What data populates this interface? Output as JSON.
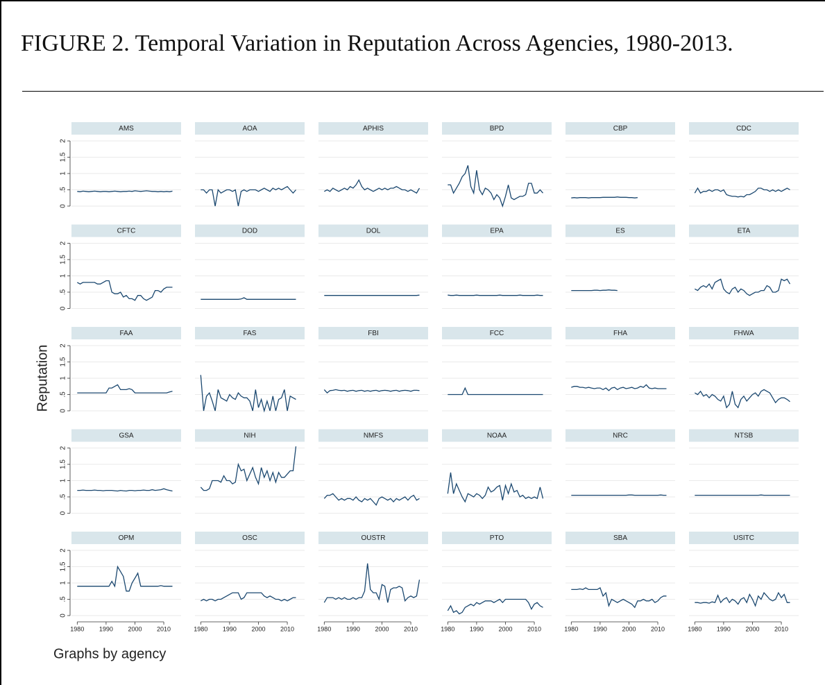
{
  "title": "FIGURE 2. Temporal Variation in Reputation Across Agencies, 1980-2013.",
  "ylabel": "Reputation",
  "note": "Graphs by agency",
  "axes": {
    "x": [
      1980,
      1981,
      1982,
      1983,
      1984,
      1985,
      1986,
      1987,
      1988,
      1989,
      1990,
      1991,
      1992,
      1993,
      1994,
      1995,
      1996,
      1997,
      1998,
      1999,
      2000,
      2001,
      2002,
      2003,
      2004,
      2005,
      2006,
      2007,
      2008,
      2009,
      2010,
      2011,
      2012,
      2013
    ],
    "xlim": [
      1978,
      2016
    ],
    "xticks": [
      1980,
      1990,
      2000,
      2010
    ],
    "ylim": [
      -0.15,
      2.15
    ],
    "yticks": [
      0,
      {
        "value": 0.5,
        "label": ".5"
      },
      1,
      1.5,
      2
    ],
    "color": "#1a476f",
    "grid": true
  },
  "chart_data": [
    {
      "type": "line",
      "title": "AMS",
      "values": [
        0.45,
        0.44,
        0.46,
        0.45,
        0.44,
        0.45,
        0.46,
        0.45,
        0.44,
        0.45,
        0.45,
        0.44,
        0.45,
        0.46,
        0.45,
        0.44,
        0.45,
        0.45,
        0.46,
        0.45,
        0.47,
        0.46,
        0.45,
        0.46,
        0.47,
        0.46,
        0.45,
        0.45,
        0.44,
        0.45,
        0.44,
        0.45,
        0.44,
        0.46
      ]
    },
    {
      "type": "line",
      "title": "AOA",
      "values": [
        0.5,
        0.5,
        0.4,
        0.5,
        0.5,
        0.0,
        0.5,
        0.4,
        0.45,
        0.5,
        0.5,
        0.45,
        0.5,
        0.0,
        0.45,
        0.5,
        0.45,
        0.5,
        0.5,
        0.5,
        0.45,
        0.5,
        0.55,
        0.5,
        0.45,
        0.55,
        0.5,
        0.55,
        0.5,
        0.55,
        0.6,
        0.5,
        0.4,
        0.5
      ]
    },
    {
      "type": "line",
      "title": "APHIS",
      "values": [
        0.45,
        0.5,
        0.45,
        0.55,
        0.5,
        0.45,
        0.5,
        0.55,
        0.5,
        0.6,
        0.55,
        0.65,
        0.8,
        0.6,
        0.5,
        0.55,
        0.5,
        0.45,
        0.5,
        0.55,
        0.5,
        0.55,
        0.5,
        0.55,
        0.55,
        0.6,
        0.55,
        0.5,
        0.5,
        0.45,
        0.5,
        0.45,
        0.4,
        0.55
      ]
    },
    {
      "type": "line",
      "title": "BPD",
      "values": [
        0.65,
        0.65,
        0.4,
        0.55,
        0.7,
        0.9,
        1.0,
        1.25,
        0.6,
        0.4,
        1.1,
        0.5,
        0.35,
        0.55,
        0.5,
        0.4,
        0.2,
        0.35,
        0.25,
        0.0,
        0.3,
        0.65,
        0.25,
        0.2,
        0.25,
        0.3,
        0.3,
        0.35,
        0.7,
        0.7,
        0.4,
        0.4,
        0.5,
        0.4
      ]
    },
    {
      "type": "line",
      "title": "CBP",
      "values": [
        0.25,
        0.26,
        0.25,
        0.26,
        0.26,
        0.26,
        0.25,
        0.26,
        0.26,
        0.26,
        0.26,
        0.27,
        0.27,
        0.27,
        0.27,
        0.27,
        0.28,
        0.27,
        0.27,
        0.27,
        0.26,
        0.26,
        0.25,
        0.26,
        null,
        null,
        null,
        null,
        null,
        null,
        null,
        null,
        null,
        null
      ]
    },
    {
      "type": "line",
      "title": "CDC",
      "values": [
        0.4,
        0.55,
        0.4,
        0.45,
        0.45,
        0.5,
        0.45,
        0.5,
        0.5,
        0.45,
        0.5,
        0.35,
        0.32,
        0.3,
        0.3,
        0.28,
        0.3,
        0.28,
        0.35,
        0.35,
        0.4,
        0.45,
        0.55,
        0.55,
        0.5,
        0.5,
        0.45,
        0.5,
        0.45,
        0.5,
        0.45,
        0.5,
        0.55,
        0.5
      ]
    },
    {
      "type": "line",
      "title": "CFTC",
      "values": [
        0.8,
        0.75,
        0.8,
        0.8,
        0.8,
        0.8,
        0.8,
        0.75,
        0.75,
        0.8,
        0.85,
        0.85,
        0.5,
        0.45,
        0.45,
        0.5,
        0.35,
        0.4,
        0.3,
        0.3,
        0.25,
        0.4,
        0.4,
        0.3,
        0.25,
        0.3,
        0.35,
        0.55,
        0.55,
        0.5,
        0.6,
        0.65,
        0.65,
        0.65
      ]
    },
    {
      "type": "line",
      "title": "DOD",
      "values": [
        0.28,
        0.28,
        0.28,
        0.28,
        0.28,
        0.28,
        0.28,
        0.28,
        0.28,
        0.28,
        0.28,
        0.28,
        0.28,
        0.28,
        0.29,
        0.33,
        0.28,
        0.28,
        0.28,
        0.28,
        0.28,
        0.28,
        0.28,
        0.28,
        0.28,
        0.28,
        0.28,
        0.28,
        0.28,
        0.28,
        0.28,
        0.28,
        0.28,
        0.28
      ]
    },
    {
      "type": "line",
      "title": "DOL",
      "values": [
        0.4,
        0.4,
        0.4,
        0.4,
        0.4,
        0.4,
        0.4,
        0.4,
        0.4,
        0.4,
        0.4,
        0.4,
        0.4,
        0.4,
        0.4,
        0.4,
        0.4,
        0.4,
        0.4,
        0.4,
        0.4,
        0.4,
        0.4,
        0.4,
        0.4,
        0.4,
        0.4,
        0.4,
        0.4,
        0.4,
        0.4,
        0.4,
        0.4,
        0.41
      ]
    },
    {
      "type": "line",
      "title": "EPA",
      "values": [
        0.41,
        0.4,
        0.4,
        0.41,
        0.4,
        0.4,
        0.4,
        0.4,
        0.4,
        0.4,
        0.41,
        0.4,
        0.4,
        0.4,
        0.4,
        0.4,
        0.4,
        0.4,
        0.41,
        0.4,
        0.4,
        0.4,
        0.4,
        0.4,
        0.4,
        0.41,
        0.4,
        0.4,
        0.4,
        0.4,
        0.4,
        0.41,
        0.4,
        0.4
      ]
    },
    {
      "type": "line",
      "title": "ES",
      "values": [
        0.55,
        0.55,
        0.55,
        0.55,
        0.55,
        0.55,
        0.55,
        0.55,
        0.56,
        0.56,
        0.55,
        0.56,
        0.56,
        0.57,
        0.56,
        0.56,
        0.55,
        null,
        null,
        null,
        null,
        null,
        null,
        null,
        null,
        null,
        null,
        null,
        null,
        null,
        null,
        null,
        null,
        null
      ]
    },
    {
      "type": "line",
      "title": "ETA",
      "values": [
        0.6,
        0.55,
        0.65,
        0.7,
        0.65,
        0.75,
        0.6,
        0.8,
        0.85,
        0.9,
        0.6,
        0.5,
        0.45,
        0.6,
        0.65,
        0.5,
        0.6,
        0.55,
        0.45,
        0.4,
        0.45,
        0.5,
        0.5,
        0.55,
        0.55,
        0.7,
        0.65,
        0.5,
        0.5,
        0.55,
        0.9,
        0.85,
        0.9,
        0.75
      ]
    },
    {
      "type": "line",
      "title": "FAA",
      "values": [
        0.55,
        0.55,
        0.55,
        0.55,
        0.55,
        0.55,
        0.55,
        0.55,
        0.55,
        0.55,
        0.55,
        0.7,
        0.7,
        0.75,
        0.8,
        0.65,
        0.65,
        0.65,
        0.68,
        0.65,
        0.55,
        0.55,
        0.55,
        0.55,
        0.55,
        0.55,
        0.55,
        0.55,
        0.55,
        0.55,
        0.55,
        0.55,
        0.58,
        0.6
      ]
    },
    {
      "type": "line",
      "title": "FAS",
      "values": [
        1.1,
        0.0,
        0.45,
        0.55,
        0.3,
        0.0,
        0.65,
        0.4,
        0.35,
        0.3,
        0.5,
        0.4,
        0.35,
        0.55,
        0.45,
        0.4,
        0.4,
        0.3,
        0.0,
        0.65,
        0.1,
        0.35,
        0.0,
        0.3,
        0.0,
        0.45,
        0.0,
        0.35,
        0.4,
        0.65,
        0.0,
        0.45,
        0.4,
        0.35
      ]
    },
    {
      "type": "line",
      "title": "FBI",
      "values": [
        0.65,
        0.55,
        0.62,
        0.63,
        0.65,
        0.63,
        0.62,
        0.63,
        0.6,
        0.62,
        0.63,
        0.6,
        0.62,
        0.63,
        0.6,
        0.62,
        0.6,
        0.62,
        0.63,
        0.6,
        0.62,
        0.63,
        0.62,
        0.6,
        0.62,
        0.63,
        0.6,
        0.62,
        0.63,
        0.62,
        0.6,
        0.63,
        0.63,
        0.62
      ]
    },
    {
      "type": "line",
      "title": "FCC",
      "values": [
        0.5,
        0.5,
        0.5,
        0.5,
        0.5,
        0.5,
        0.7,
        0.5,
        0.5,
        0.5,
        0.5,
        0.5,
        0.5,
        0.5,
        0.5,
        0.5,
        0.5,
        0.5,
        0.5,
        0.5,
        0.5,
        0.5,
        0.5,
        0.5,
        0.5,
        0.5,
        0.5,
        0.5,
        0.5,
        0.5,
        0.5,
        0.5,
        0.5,
        0.5
      ]
    },
    {
      "type": "line",
      "title": "FHA",
      "values": [
        0.72,
        0.75,
        0.75,
        0.72,
        0.72,
        0.7,
        0.72,
        0.7,
        0.68,
        0.7,
        0.7,
        0.65,
        0.7,
        0.62,
        0.7,
        0.72,
        0.65,
        0.7,
        0.72,
        0.68,
        0.7,
        0.72,
        0.68,
        0.7,
        0.75,
        0.72,
        0.8,
        0.7,
        0.68,
        0.7,
        0.68,
        0.68,
        0.68,
        0.68
      ]
    },
    {
      "type": "line",
      "title": "FHWA",
      "values": [
        0.55,
        0.5,
        0.6,
        0.45,
        0.5,
        0.4,
        0.5,
        0.45,
        0.35,
        0.3,
        0.45,
        0.1,
        0.2,
        0.6,
        0.2,
        0.1,
        0.35,
        0.45,
        0.3,
        0.4,
        0.5,
        0.55,
        0.45,
        0.6,
        0.65,
        0.6,
        0.55,
        0.4,
        0.25,
        0.35,
        0.4,
        0.4,
        0.35,
        0.28
      ]
    },
    {
      "type": "line",
      "title": "GSA",
      "values": [
        0.7,
        0.7,
        0.71,
        0.7,
        0.7,
        0.7,
        0.71,
        0.7,
        0.7,
        0.69,
        0.7,
        0.7,
        0.7,
        0.69,
        0.68,
        0.7,
        0.69,
        0.68,
        0.7,
        0.7,
        0.69,
        0.7,
        0.7,
        0.71,
        0.7,
        0.7,
        0.72,
        0.7,
        0.71,
        0.72,
        0.75,
        0.72,
        0.7,
        0.68
      ]
    },
    {
      "type": "line",
      "title": "NIH",
      "values": [
        0.8,
        0.7,
        0.7,
        0.75,
        1.0,
        1.0,
        1.0,
        0.95,
        1.15,
        1.0,
        1.0,
        0.9,
        0.95,
        1.5,
        1.3,
        1.35,
        1.0,
        1.2,
        1.4,
        1.1,
        0.9,
        1.4,
        1.1,
        1.3,
        1.0,
        1.25,
        0.95,
        1.25,
        1.1,
        1.1,
        1.2,
        1.3,
        1.3,
        2.05
      ]
    },
    {
      "type": "line",
      "title": "NMFS",
      "values": [
        0.45,
        0.55,
        0.55,
        0.6,
        0.5,
        0.4,
        0.45,
        0.4,
        0.45,
        0.45,
        0.4,
        0.5,
        0.4,
        0.35,
        0.45,
        0.4,
        0.45,
        0.35,
        0.25,
        0.45,
        0.5,
        0.45,
        0.4,
        0.45,
        0.35,
        0.45,
        0.4,
        0.45,
        0.5,
        0.4,
        0.5,
        0.55,
        0.4,
        0.45
      ]
    },
    {
      "type": "line",
      "title": "NOAA",
      "values": [
        0.6,
        1.25,
        0.6,
        0.9,
        0.7,
        0.5,
        0.35,
        0.6,
        0.55,
        0.5,
        0.6,
        0.55,
        0.45,
        0.55,
        0.8,
        0.65,
        0.7,
        0.8,
        0.85,
        0.4,
        0.85,
        0.6,
        0.9,
        0.65,
        0.7,
        0.5,
        0.55,
        0.45,
        0.5,
        0.45,
        0.5,
        0.45,
        0.8,
        0.45
      ]
    },
    {
      "type": "line",
      "title": "NRC",
      "values": [
        0.55,
        0.55,
        0.55,
        0.55,
        0.55,
        0.55,
        0.55,
        0.55,
        0.55,
        0.55,
        0.55,
        0.55,
        0.55,
        0.55,
        0.55,
        0.55,
        0.55,
        0.55,
        0.55,
        0.55,
        0.56,
        0.56,
        0.55,
        0.55,
        0.55,
        0.55,
        0.55,
        0.55,
        0.55,
        0.55,
        0.55,
        0.56,
        0.55,
        0.55
      ]
    },
    {
      "type": "line",
      "title": "NTSB",
      "values": [
        0.55,
        0.55,
        0.55,
        0.55,
        0.55,
        0.55,
        0.55,
        0.55,
        0.55,
        0.55,
        0.55,
        0.55,
        0.55,
        0.55,
        0.55,
        0.55,
        0.55,
        0.55,
        0.55,
        0.55,
        0.55,
        0.55,
        0.55,
        0.56,
        0.55,
        0.55,
        0.55,
        0.55,
        0.55,
        0.55,
        0.55,
        0.55,
        0.55,
        0.55
      ]
    },
    {
      "type": "line",
      "title": "OPM",
      "values": [
        0.9,
        0.9,
        0.9,
        0.9,
        0.9,
        0.9,
        0.9,
        0.9,
        0.9,
        0.9,
        0.9,
        0.9,
        1.05,
        0.9,
        1.5,
        1.35,
        1.2,
        0.75,
        0.75,
        1.0,
        1.15,
        1.3,
        0.9,
        0.9,
        0.9,
        0.9,
        0.9,
        0.9,
        0.9,
        0.92,
        0.9,
        0.9,
        0.9,
        0.9
      ]
    },
    {
      "type": "line",
      "title": "OSC",
      "values": [
        0.45,
        0.5,
        0.45,
        0.5,
        0.5,
        0.45,
        0.5,
        0.5,
        0.55,
        0.6,
        0.65,
        0.7,
        0.7,
        0.7,
        0.5,
        0.55,
        0.7,
        0.7,
        0.7,
        0.7,
        0.7,
        0.7,
        0.6,
        0.55,
        0.6,
        0.55,
        0.5,
        0.5,
        0.45,
        0.5,
        0.45,
        0.5,
        0.55,
        0.55
      ]
    },
    {
      "type": "line",
      "title": "OUSTR",
      "values": [
        0.4,
        0.55,
        0.55,
        0.55,
        0.5,
        0.55,
        0.5,
        0.55,
        0.5,
        0.5,
        0.55,
        0.5,
        0.55,
        0.55,
        0.75,
        1.6,
        0.8,
        0.7,
        0.7,
        0.5,
        0.95,
        0.9,
        0.4,
        0.8,
        0.85,
        0.85,
        0.9,
        0.85,
        0.45,
        0.55,
        0.6,
        0.55,
        0.6,
        1.1
      ]
    },
    {
      "type": "line",
      "title": "PTO",
      "values": [
        0.15,
        0.3,
        0.1,
        0.15,
        0.05,
        0.1,
        0.25,
        0.3,
        0.35,
        0.3,
        0.4,
        0.35,
        0.4,
        0.45,
        0.45,
        0.45,
        0.4,
        0.45,
        0.5,
        0.4,
        0.5,
        0.5,
        0.5,
        0.5,
        0.5,
        0.5,
        0.5,
        0.5,
        0.4,
        0.2,
        0.35,
        0.4,
        0.3,
        0.25
      ]
    },
    {
      "type": "line",
      "title": "SBA",
      "values": [
        0.8,
        0.8,
        0.8,
        0.82,
        0.8,
        0.85,
        0.8,
        0.8,
        0.8,
        0.8,
        0.85,
        0.6,
        0.7,
        0.3,
        0.5,
        0.45,
        0.4,
        0.45,
        0.5,
        0.45,
        0.4,
        0.35,
        0.25,
        0.45,
        0.45,
        0.5,
        0.45,
        0.45,
        0.5,
        0.4,
        0.45,
        0.55,
        0.6,
        0.6
      ]
    },
    {
      "type": "line",
      "title": "USITC",
      "values": [
        0.4,
        0.4,
        0.38,
        0.4,
        0.4,
        0.38,
        0.42,
        0.4,
        0.62,
        0.4,
        0.5,
        0.55,
        0.4,
        0.5,
        0.45,
        0.35,
        0.5,
        0.55,
        0.4,
        0.65,
        0.5,
        0.3,
        0.6,
        0.5,
        0.7,
        0.6,
        0.5,
        0.45,
        0.5,
        0.7,
        0.55,
        0.65,
        0.4,
        0.4
      ]
    }
  ]
}
